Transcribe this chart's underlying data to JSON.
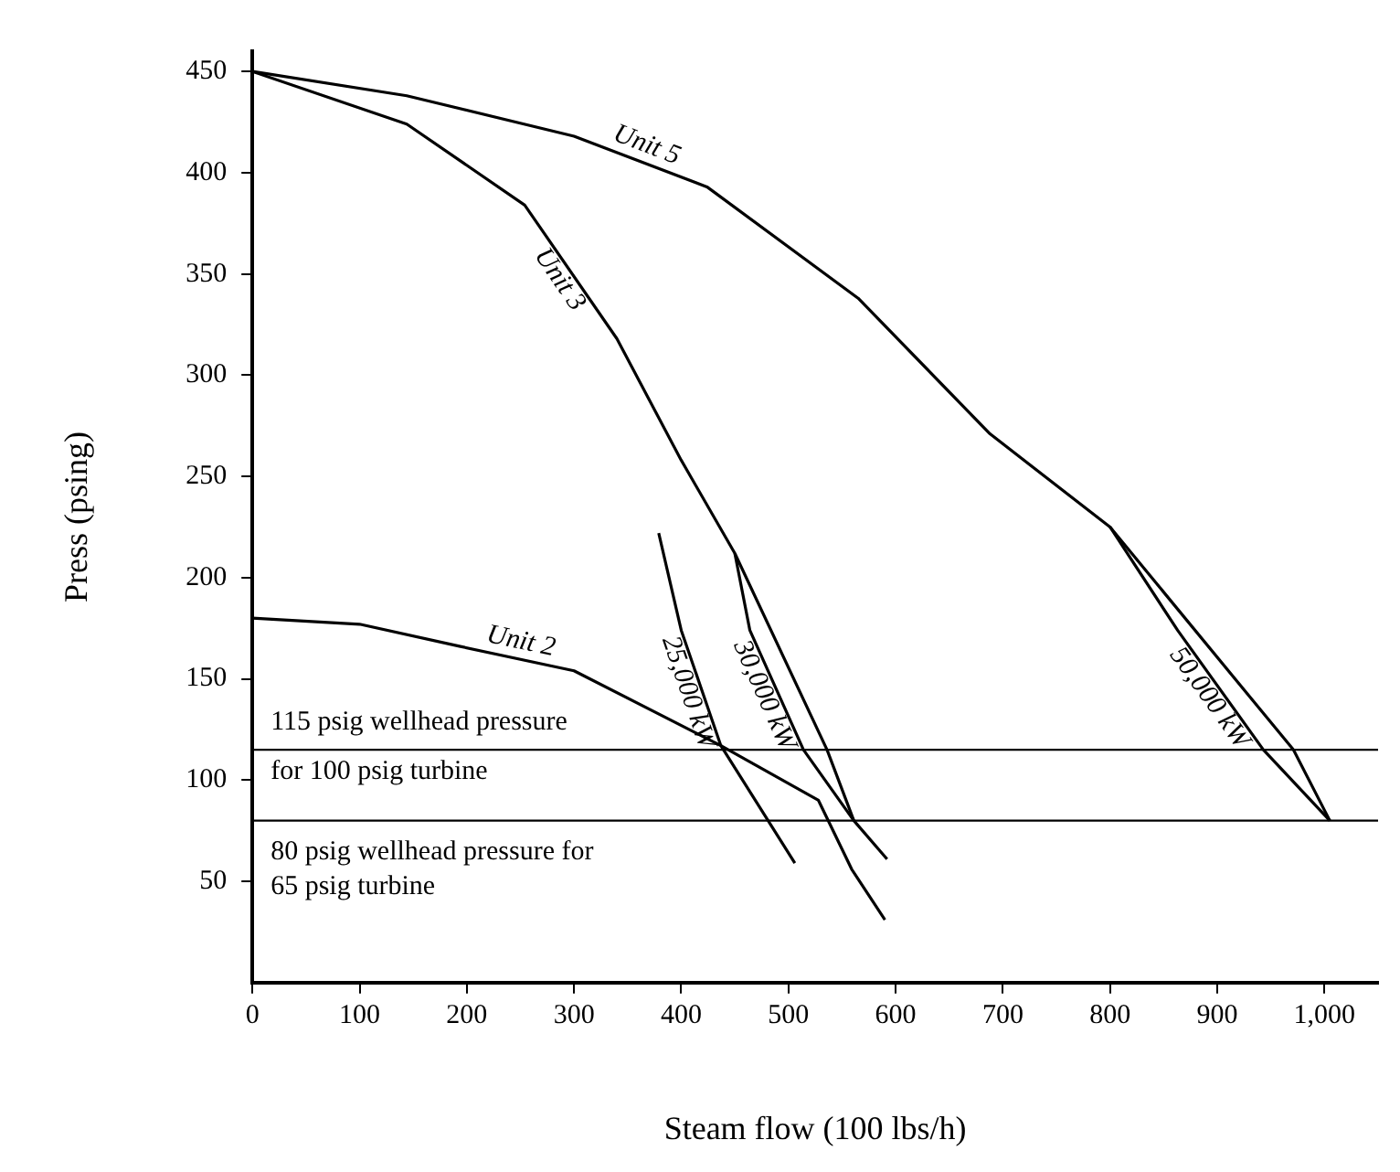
{
  "chart_data": {
    "type": "line",
    "xlabel": "Steam flow (100 lbs/h)",
    "ylabel": "Press (psing)",
    "xlim": [
      0,
      1050
    ],
    "xticks": [
      0,
      100,
      200,
      300,
      400,
      500,
      600,
      700,
      800,
      900,
      {
        "value": 1000,
        "label": "1,000"
      }
    ],
    "ylim": [
      0,
      460
    ],
    "yticks": [
      50,
      100,
      150,
      200,
      250,
      300,
      350,
      400,
      450
    ],
    "series": [
      {
        "name": "Unit 5",
        "color": "#000000",
        "x": [
          0,
          144,
          300,
          424,
          565,
          688,
          800,
          971,
          1005
        ],
        "values": [
          450,
          438,
          418,
          393,
          338,
          271,
          225,
          115,
          80
        ]
      },
      {
        "name": "50,000 kW",
        "color": "#000000",
        "x": [
          800,
          863,
          943,
          1005
        ],
        "values": [
          225,
          174,
          115,
          80
        ]
      },
      {
        "name": "Unit 3",
        "color": "#000000",
        "x": [
          0,
          144,
          254,
          340,
          400,
          450,
          536,
          561,
          592
        ],
        "values": [
          450,
          424,
          384,
          318,
          258,
          212,
          115,
          80,
          61
        ]
      },
      {
        "name": "30,000 kW",
        "color": "#000000",
        "x": [
          450,
          464,
          514,
          561
        ],
        "values": [
          212,
          174,
          115,
          80
        ]
      },
      {
        "name": "25,000 kW",
        "color": "#000000",
        "x": [
          379,
          400,
          437,
          506
        ],
        "values": [
          222,
          174,
          117,
          59
        ]
      },
      {
        "name": "Unit 2",
        "color": "#000000",
        "x": [
          0,
          100,
          194,
          300,
          437,
          528,
          559,
          590
        ],
        "values": [
          180,
          177,
          166,
          154,
          117,
          90,
          56,
          31
        ]
      }
    ],
    "ref_lines": [
      {
        "axis": "y",
        "value": 115,
        "label": "115 psig wellhead pressure for 100 psig turbine",
        "color": "#000000"
      },
      {
        "axis": "y",
        "value": 80,
        "label": "80 psig wellhead pressure for 65 psig turbine",
        "color": "#000000"
      }
    ],
    "grid": false,
    "legend": false,
    "marker": "none",
    "line_style": "solid"
  }
}
